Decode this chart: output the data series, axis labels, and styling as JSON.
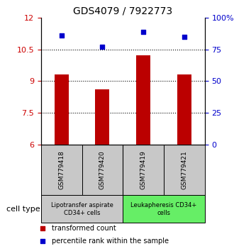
{
  "title": "GDS4079 / 7922773",
  "samples": [
    "GSM779418",
    "GSM779420",
    "GSM779419",
    "GSM779421"
  ],
  "bar_values": [
    9.3,
    8.6,
    10.2,
    9.3
  ],
  "scatter_values": [
    11.15,
    10.62,
    11.32,
    11.08
  ],
  "ylim_left": [
    6,
    12
  ],
  "ylim_right": [
    0,
    100
  ],
  "yticks_left": [
    6,
    7.5,
    9,
    10.5,
    12
  ],
  "ytick_labels_left": [
    "6",
    "7.5",
    "9",
    "10.5",
    "12"
  ],
  "yticks_right": [
    0,
    25,
    50,
    75,
    100
  ],
  "ytick_labels_right": [
    "0",
    "25",
    "50",
    "75",
    "100%"
  ],
  "hlines": [
    7.5,
    9.0,
    10.5
  ],
  "bar_color": "#bb0000",
  "scatter_color": "#0000cc",
  "bar_width": 0.35,
  "group1_color": "#c8c8c8",
  "group2_color": "#66ee66",
  "group1_label": "Lipotransfer aspirate\nCD34+ cells",
  "group2_label": "Leukapheresis CD34+\ncells",
  "legend_bar_label": "transformed count",
  "legend_scatter_label": "percentile rank within the sample",
  "cell_type_label": "cell type",
  "left_tick_color": "#cc0000",
  "right_tick_color": "#0000cc",
  "title_fontsize": 10,
  "tick_fontsize": 8,
  "sample_fontsize": 6.5,
  "group_fontsize": 6,
  "legend_fontsize": 7,
  "cell_type_fontsize": 8
}
